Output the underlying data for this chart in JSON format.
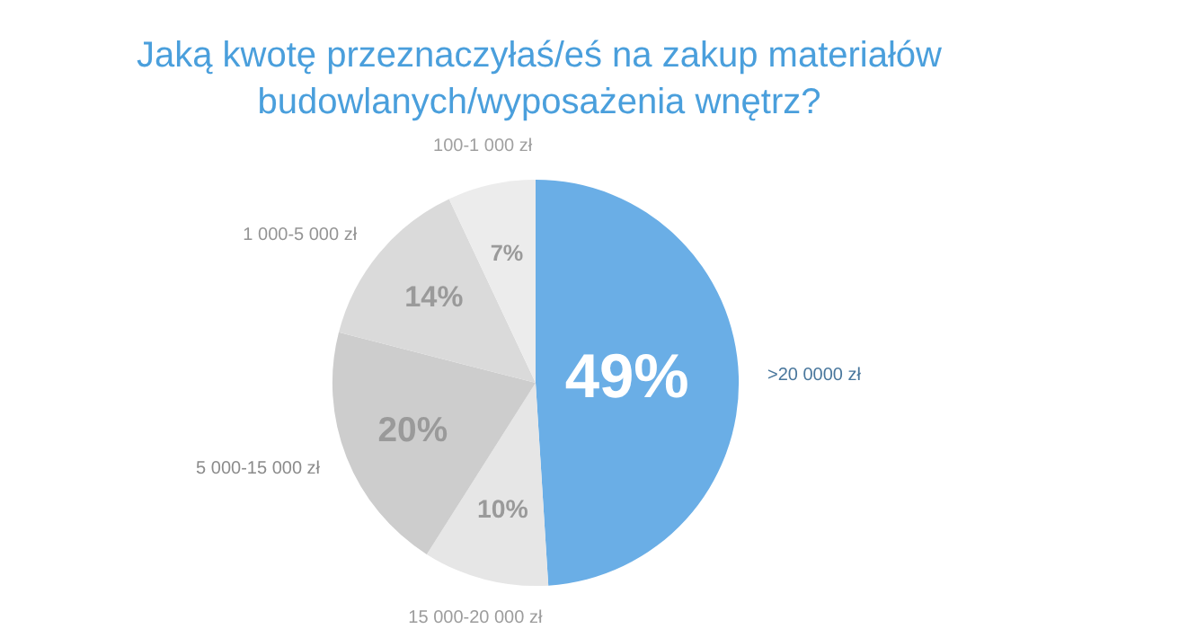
{
  "chart_data": {
    "type": "pie",
    "title": "Jaką kwotę przeznaczyłaś/eś na zakup materiałów budowlanych/wyposażenia wnętrz?",
    "categories": [
      ">20 0000 zł",
      "15 000-20 000 zł",
      "5 000-15 000 zł",
      "1 000-5 000 zł",
      "100-1 000 zł"
    ],
    "values": [
      49,
      10,
      20,
      14,
      7
    ],
    "colors": [
      "#6aaee6",
      "#e6e6e6",
      "#cdcdcd",
      "#dadada",
      "#ececec"
    ],
    "value_labels": [
      "49%",
      "10%",
      "20%",
      "14%",
      "7%"
    ],
    "legend": false
  }
}
